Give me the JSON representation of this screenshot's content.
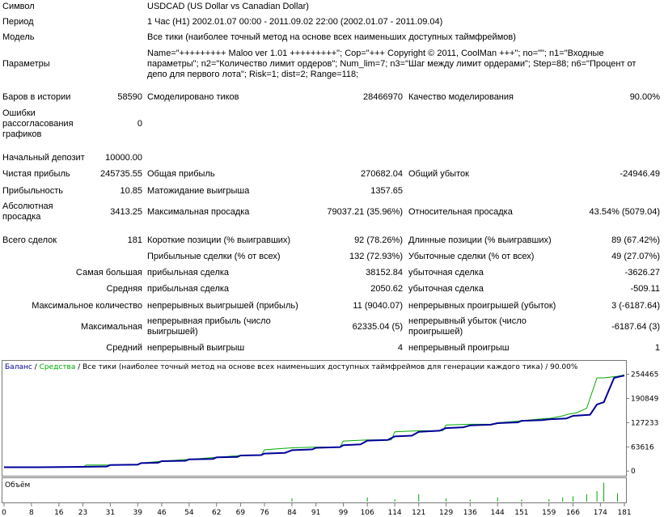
{
  "report": {
    "symbol_label": "Символ",
    "symbol_value": "USDCAD (US Dollar vs Canadian Dollar)",
    "period_label": "Период",
    "period_value": "1 Час (H1) 2002.01.07 00:00 - 2011.09.02 22:00 (2002.01.07 - 2011.09.04)",
    "model_label": "Модель",
    "model_value": "Все тики (наиболее точный метод на основе всех наименьших доступных таймфреймов)",
    "params_label": "Параметры",
    "params_value": "Name=\"+++++++++ Maloo ver 1.01 +++++++++\"; Cop=\"+++ Copyright © 2011, CoolMan +++\"; no=\"\"; n1=\"Входные параметры\"; n2=\"Количество лимит ордеров\"; Num_lim=7; n3=\"Шаг между лимит ордерами\"; Step=88; n6=\"Процент от депо для первого лота\"; Risk=1; dist=2; Range=118;",
    "bars_label": "Баров в истории",
    "bars_value": "58590",
    "ticks_label": "Смоделировано тиков",
    "ticks_value": "28466970",
    "quality_label": "Качество моделирования",
    "quality_value": "90.00%",
    "errors_label": "Ошибки рассогласования графиков",
    "errors_value": "0",
    "deposit_label": "Начальный депозит",
    "deposit_value": "10000.00",
    "net_profit_label": "Чистая прибыль",
    "net_profit_value": "245735.55",
    "gross_profit_label": "Общая прибыль",
    "gross_profit_value": "270682.04",
    "gross_loss_label": "Общий убыток",
    "gross_loss_value": "-24946.49",
    "profit_factor_label": "Прибыльность",
    "profit_factor_value": "10.85",
    "expected_payoff_label": "Матожидание выигрыша",
    "expected_payoff_value": "1357.65",
    "abs_dd_label": "Абсолютная просадка",
    "abs_dd_value": "3413.25",
    "max_dd_label": "Максимальная просадка",
    "max_dd_value": "79037.21 (35.96%)",
    "rel_dd_label": "Относительная просадка",
    "rel_dd_value": "43.54% (5079.04)",
    "total_trades_label": "Всего сделок",
    "total_trades_value": "181",
    "short_label": "Короткие позиции (% выигравших)",
    "short_value": "92 (78.26%)",
    "long_label": "Длинные позиции (% выигравших)",
    "long_value": "89 (67.42%)",
    "profit_trades_label": "Прибыльные сделки (% от всех)",
    "profit_trades_value": "132 (72.93%)",
    "loss_trades_label": "Убыточные сделки (% от всех)",
    "loss_trades_value": "49 (27.07%)",
    "largest_label": "Самая большая",
    "largest_profit_label": "прибыльная сделка",
    "largest_profit_value": "38152.84",
    "largest_loss_label": "убыточная сделка",
    "largest_loss_value": "-3626.27",
    "average_label": "Средняя",
    "average_profit_label": "прибыльная сделка",
    "average_profit_value": "2050.62",
    "average_loss_label": "убыточная сделка",
    "average_loss_value": "-509.11",
    "max_count_label": "Максимальное количество",
    "max_cons_wins_label": "непрерывных выигрышей (прибыль)",
    "max_cons_wins_value": "11 (9040.07)",
    "max_cons_losses_label": "непрерывных проигрышей (убыток)",
    "max_cons_losses_value": "3 (-6187.64)",
    "maximal_label": "Максимальная",
    "max_cons_profit_label": "непрерывная прибыль (число выигрышей)",
    "max_cons_profit_value": "62335.04 (5)",
    "max_cons_loss_label": "непрерывный убыток (число проигрышей)",
    "max_cons_loss_value": "-6187.64 (3)",
    "avg_cons_label": "Средний",
    "avg_cons_wins_label": "непрерывный выигрыш",
    "avg_cons_wins_value": "4",
    "avg_cons_losses_label": "непрерывный проигрыш",
    "avg_cons_losses_value": "1"
  },
  "chart_data": {
    "type": "line",
    "legend_balance": "Баланс",
    "legend_sep1": " / ",
    "legend_equity": "Средства",
    "legend_rest": " / Все тики (наиболее точный метод на основе всех наименьших доступных таймфреймов для генерации каждого тика) / 90.00%",
    "volume_label": "Объём",
    "y_ticks": [
      "254465",
      "190849",
      "127233",
      "63616",
      "0"
    ],
    "y_tick_values": [
      254465,
      190849,
      127233,
      63616,
      0
    ],
    "x_ticks": [
      "0",
      "8",
      "16",
      "23",
      "31",
      "39",
      "46",
      "54",
      "62",
      "69",
      "76",
      "84",
      "91",
      "99",
      "106",
      "114",
      "121",
      "129",
      "136",
      "144",
      "151",
      "159",
      "166",
      "174",
      "181"
    ],
    "xlim": [
      0,
      181
    ],
    "ylim": [
      -8000,
      262000
    ],
    "series": [
      {
        "color": "#000099",
        "x": [
          0,
          10,
          20,
          30,
          31,
          39,
          40,
          45,
          46,
          53,
          54,
          61,
          62,
          68,
          69,
          75,
          76,
          82,
          84,
          90,
          91,
          98,
          99,
          104,
          106,
          112,
          114,
          119,
          121,
          127,
          129,
          134,
          136,
          142,
          144,
          150,
          151,
          157,
          159,
          164,
          166,
          171,
          173,
          175,
          178,
          181
        ],
        "y": [
          10000,
          10000,
          11000,
          12000,
          16000,
          17000,
          21000,
          22000,
          26000,
          27000,
          31000,
          32000,
          36000,
          37000,
          41000,
          42000,
          46000,
          48000,
          55000,
          57000,
          61000,
          63000,
          68000,
          70000,
          80000,
          82000,
          91000,
          93000,
          103000,
          106000,
          113000,
          115000,
          120000,
          122000,
          126000,
          128000,
          132000,
          134000,
          136000,
          138000,
          145000,
          148000,
          175000,
          181000,
          245000,
          251000
        ]
      },
      {
        "color": "#00aa00",
        "x": [
          0,
          23,
          24,
          31,
          39,
          40,
          46,
          54,
          62,
          69,
          75,
          76,
          84,
          91,
          98,
          99,
          106,
          113,
          114,
          121,
          128,
          129,
          136,
          143,
          144,
          151,
          158,
          159,
          163,
          165,
          167,
          170,
          173,
          175,
          179,
          181
        ],
        "y": [
          10000,
          10000,
          16000,
          16000,
          16000,
          21000,
          26000,
          31000,
          36000,
          41000,
          41000,
          56000,
          61000,
          63000,
          63000,
          79000,
          82000,
          82000,
          103000,
          106000,
          106000,
          121000,
          123000,
          123000,
          127000,
          132000,
          138000,
          138000,
          145000,
          150000,
          153000,
          165000,
          245000,
          245000,
          249000,
          253000
        ]
      }
    ],
    "volume_bars": [
      {
        "x": 84,
        "v": 0.15
      },
      {
        "x": 106,
        "v": 0.2
      },
      {
        "x": 114,
        "v": 0.12
      },
      {
        "x": 121,
        "v": 0.35
      },
      {
        "x": 129,
        "v": 0.15
      },
      {
        "x": 136,
        "v": 0.1
      },
      {
        "x": 144,
        "v": 0.2
      },
      {
        "x": 151,
        "v": 0.1
      },
      {
        "x": 159,
        "v": 0.12
      },
      {
        "x": 163,
        "v": 0.2
      },
      {
        "x": 166,
        "v": 0.25
      },
      {
        "x": 170,
        "v": 0.35
      },
      {
        "x": 173,
        "v": 0.5
      },
      {
        "x": 175,
        "v": 0.9
      },
      {
        "x": 179,
        "v": 0.4
      }
    ]
  }
}
